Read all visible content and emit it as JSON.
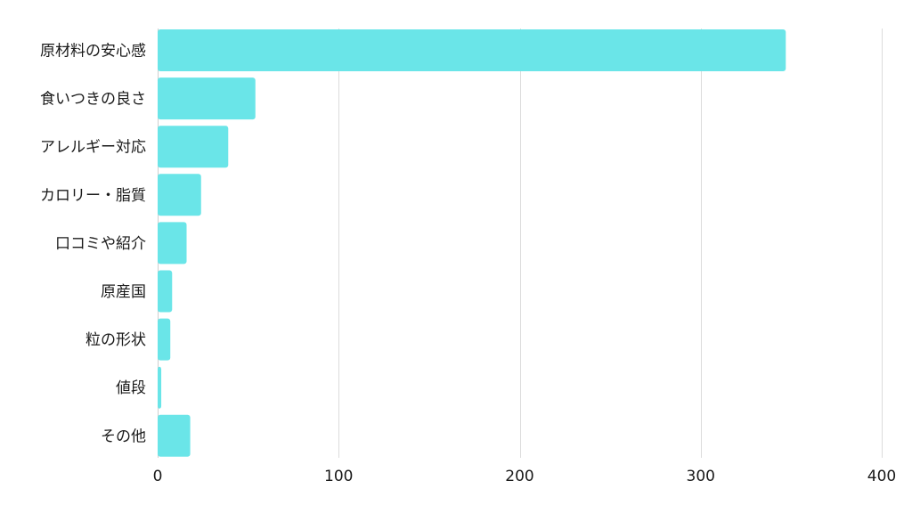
{
  "chart_data": {
    "type": "bar",
    "orientation": "horizontal",
    "categories": [
      "原材料の安心感",
      "食いつきの良さ",
      "アレルギー対応",
      "カロリー・脂質",
      "口コミや紹介",
      "原産国",
      "粒の形状",
      "値段",
      "その他"
    ],
    "series": [
      {
        "values": [
          347,
          54,
          39,
          24,
          16,
          8,
          7,
          2,
          18
        ],
        "color": "#6ae5e8"
      }
    ],
    "xlim": [
      0,
      400
    ],
    "x_ticks": [
      0,
      100,
      200,
      300,
      400
    ],
    "title": "",
    "xlabel": "",
    "ylabel": "",
    "grid": "vertical",
    "legend": "none"
  }
}
